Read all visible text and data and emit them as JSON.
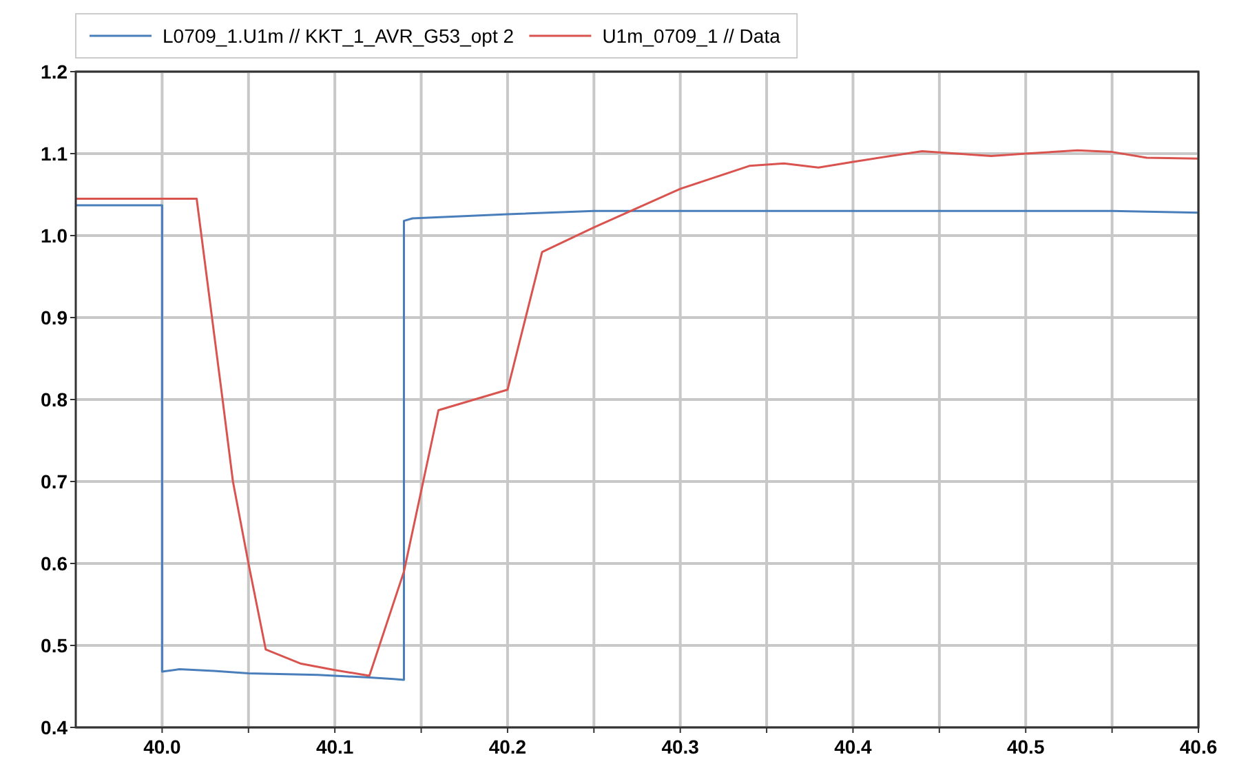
{
  "chart_data": {
    "type": "line",
    "xlim": [
      39.95,
      40.6
    ],
    "ylim": [
      0.4,
      1.2
    ],
    "xticks": [
      {
        "value": 40.0,
        "label": "40.0"
      },
      {
        "value": 40.05,
        "label": null
      },
      {
        "value": 40.1,
        "label": "40.1"
      },
      {
        "value": 40.15,
        "label": null
      },
      {
        "value": 40.2,
        "label": "40.2"
      },
      {
        "value": 40.25,
        "label": null
      },
      {
        "value": 40.3,
        "label": "40.3"
      },
      {
        "value": 40.35,
        "label": null
      },
      {
        "value": 40.4,
        "label": "40.4"
      },
      {
        "value": 40.45,
        "label": null
      },
      {
        "value": 40.5,
        "label": "40.5"
      },
      {
        "value": 40.55,
        "label": null
      },
      {
        "value": 40.6,
        "label": "40.6"
      }
    ],
    "yticks": [
      {
        "value": 0.4,
        "label": "0.4"
      },
      {
        "value": 0.5,
        "label": "0.5"
      },
      {
        "value": 0.6,
        "label": "0.6"
      },
      {
        "value": 0.7,
        "label": "0.7"
      },
      {
        "value": 0.8,
        "label": "0.8"
      },
      {
        "value": 0.9,
        "label": "0.9"
      },
      {
        "value": 1.0,
        "label": "1.0"
      },
      {
        "value": 1.1,
        "label": "1.1"
      },
      {
        "value": 1.2,
        "label": "1.2"
      }
    ],
    "grid": true,
    "legend": "top",
    "line_style": "solid",
    "series": [
      {
        "name": "L0709_1.U1m // KKT_1_AVR_G53_opt 2",
        "color": "#4a7ebb",
        "x": [
          39.95,
          40.0,
          40.0,
          40.01,
          40.03,
          40.05,
          40.09,
          40.12,
          40.134,
          40.14,
          40.14,
          40.145,
          40.2,
          40.25,
          40.55,
          40.6
        ],
        "values": [
          1.037,
          1.037,
          0.468,
          0.471,
          0.469,
          0.466,
          0.464,
          0.461,
          0.459,
          0.458,
          1.018,
          1.021,
          1.026,
          1.03,
          1.03,
          1.028
        ]
      },
      {
        "name": "U1m_0709_1 // Data",
        "color": "#d9534f",
        "x": [
          39.95,
          40.02,
          40.035,
          40.041,
          40.05,
          40.06,
          40.08,
          40.1,
          40.12,
          40.14,
          40.16,
          40.2,
          40.22,
          40.25,
          40.3,
          40.34,
          40.36,
          40.38,
          40.4,
          40.44,
          40.48,
          40.5,
          40.53,
          40.55,
          40.57,
          40.6
        ],
        "values": [
          1.045,
          1.045,
          0.8,
          0.7,
          0.6,
          0.495,
          0.478,
          0.47,
          0.463,
          0.59,
          0.787,
          0.812,
          0.98,
          1.01,
          1.057,
          1.085,
          1.088,
          1.083,
          1.09,
          1.103,
          1.097,
          1.1,
          1.104,
          1.102,
          1.095,
          1.094
        ]
      }
    ]
  }
}
